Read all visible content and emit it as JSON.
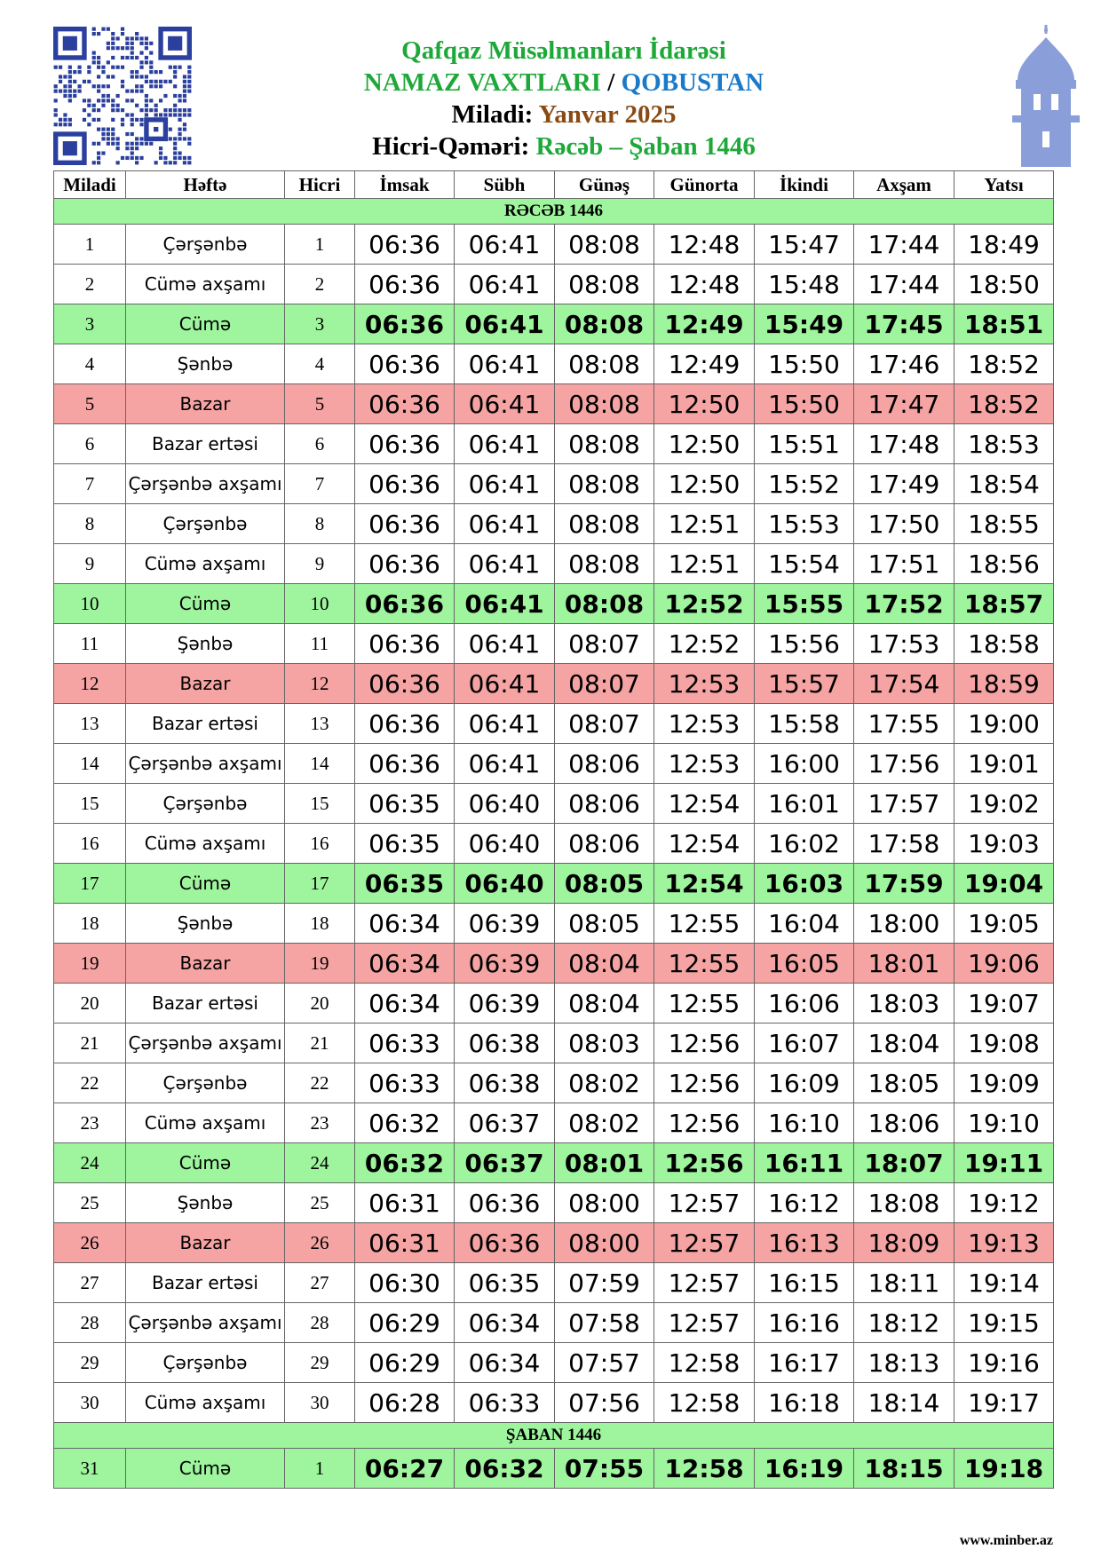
{
  "header": {
    "org": "Qafqaz Müsəlmanları İdarəsi",
    "title": "NAMAZ VAXTLARI",
    "separator": "/",
    "city": "QOBUSTAN",
    "miladi_label": "Miladi:",
    "miladi": "Yanvar 2025",
    "hijri_label": "Hicri-Qəməri:",
    "hijri": "Rəcəb – Şaban 1446"
  },
  "table": {
    "columns": [
      "Miladi",
      "Həftə",
      "Hicri",
      "İmsak",
      "Sübh",
      "Günəş",
      "Günorta",
      "İkindi",
      "Axşam",
      "Yatsı"
    ],
    "sections": [
      {
        "title": "RƏCƏB 1446",
        "rows": [
          {
            "cells": [
              1,
              "Çərşənbə",
              1,
              "06:36",
              "06:41",
              "08:08",
              "12:48",
              "15:47",
              "17:44",
              "18:49"
            ]
          },
          {
            "cells": [
              2,
              "Cümə axşamı",
              2,
              "06:36",
              "06:41",
              "08:08",
              "12:48",
              "15:48",
              "17:44",
              "18:50"
            ]
          },
          {
            "cells": [
              3,
              "Cümə",
              3,
              "06:36",
              "06:41",
              "08:08",
              "12:49",
              "15:49",
              "17:45",
              "18:51"
            ],
            "color": "#9ef59e",
            "bold": true
          },
          {
            "cells": [
              4,
              "Şənbə",
              4,
              "06:36",
              "06:41",
              "08:08",
              "12:49",
              "15:50",
              "17:46",
              "18:52"
            ]
          },
          {
            "cells": [
              5,
              "Bazar",
              5,
              "06:36",
              "06:41",
              "08:08",
              "12:50",
              "15:50",
              "17:47",
              "18:52"
            ],
            "color": "#f5a3a3"
          },
          {
            "cells": [
              6,
              "Bazar ertəsi",
              6,
              "06:36",
              "06:41",
              "08:08",
              "12:50",
              "15:51",
              "17:48",
              "18:53"
            ]
          },
          {
            "cells": [
              7,
              "Çərşənbə axşamı",
              7,
              "06:36",
              "06:41",
              "08:08",
              "12:50",
              "15:52",
              "17:49",
              "18:54"
            ]
          },
          {
            "cells": [
              8,
              "Çərşənbə",
              8,
              "06:36",
              "06:41",
              "08:08",
              "12:51",
              "15:53",
              "17:50",
              "18:55"
            ]
          },
          {
            "cells": [
              9,
              "Cümə axşamı",
              9,
              "06:36",
              "06:41",
              "08:08",
              "12:51",
              "15:54",
              "17:51",
              "18:56"
            ]
          },
          {
            "cells": [
              10,
              "Cümə",
              10,
              "06:36",
              "06:41",
              "08:08",
              "12:52",
              "15:55",
              "17:52",
              "18:57"
            ],
            "color": "#9ef59e",
            "bold": true
          },
          {
            "cells": [
              11,
              "Şənbə",
              11,
              "06:36",
              "06:41",
              "08:07",
              "12:52",
              "15:56",
              "17:53",
              "18:58"
            ]
          },
          {
            "cells": [
              12,
              "Bazar",
              12,
              "06:36",
              "06:41",
              "08:07",
              "12:53",
              "15:57",
              "17:54",
              "18:59"
            ],
            "color": "#f5a3a3"
          },
          {
            "cells": [
              13,
              "Bazar ertəsi",
              13,
              "06:36",
              "06:41",
              "08:07",
              "12:53",
              "15:58",
              "17:55",
              "19:00"
            ]
          },
          {
            "cells": [
              14,
              "Çərşənbə axşamı",
              14,
              "06:36",
              "06:41",
              "08:06",
              "12:53",
              "16:00",
              "17:56",
              "19:01"
            ]
          },
          {
            "cells": [
              15,
              "Çərşənbə",
              15,
              "06:35",
              "06:40",
              "08:06",
              "12:54",
              "16:01",
              "17:57",
              "19:02"
            ]
          },
          {
            "cells": [
              16,
              "Cümə axşamı",
              16,
              "06:35",
              "06:40",
              "08:06",
              "12:54",
              "16:02",
              "17:58",
              "19:03"
            ]
          },
          {
            "cells": [
              17,
              "Cümə",
              17,
              "06:35",
              "06:40",
              "08:05",
              "12:54",
              "16:03",
              "17:59",
              "19:04"
            ],
            "color": "#9ef59e",
            "bold": true
          },
          {
            "cells": [
              18,
              "Şənbə",
              18,
              "06:34",
              "06:39",
              "08:05",
              "12:55",
              "16:04",
              "18:00",
              "19:05"
            ]
          },
          {
            "cells": [
              19,
              "Bazar",
              19,
              "06:34",
              "06:39",
              "08:04",
              "12:55",
              "16:05",
              "18:01",
              "19:06"
            ],
            "color": "#f5a3a3"
          },
          {
            "cells": [
              20,
              "Bazar ertəsi",
              20,
              "06:34",
              "06:39",
              "08:04",
              "12:55",
              "16:06",
              "18:03",
              "19:07"
            ]
          },
          {
            "cells": [
              21,
              "Çərşənbə axşamı",
              21,
              "06:33",
              "06:38",
              "08:03",
              "12:56",
              "16:07",
              "18:04",
              "19:08"
            ]
          },
          {
            "cells": [
              22,
              "Çərşənbə",
              22,
              "06:33",
              "06:38",
              "08:02",
              "12:56",
              "16:09",
              "18:05",
              "19:09"
            ]
          },
          {
            "cells": [
              23,
              "Cümə axşamı",
              23,
              "06:32",
              "06:37",
              "08:02",
              "12:56",
              "16:10",
              "18:06",
              "19:10"
            ]
          },
          {
            "cells": [
              24,
              "Cümə",
              24,
              "06:32",
              "06:37",
              "08:01",
              "12:56",
              "16:11",
              "18:07",
              "19:11"
            ],
            "color": "#9ef59e",
            "bold": true
          },
          {
            "cells": [
              25,
              "Şənbə",
              25,
              "06:31",
              "06:36",
              "08:00",
              "12:57",
              "16:12",
              "18:08",
              "19:12"
            ]
          },
          {
            "cells": [
              26,
              "Bazar",
              26,
              "06:31",
              "06:36",
              "08:00",
              "12:57",
              "16:13",
              "18:09",
              "19:13"
            ],
            "color": "#f5a3a3"
          },
          {
            "cells": [
              27,
              "Bazar ertəsi",
              27,
              "06:30",
              "06:35",
              "07:59",
              "12:57",
              "16:15",
              "18:11",
              "19:14"
            ]
          },
          {
            "cells": [
              28,
              "Çərşənbə axşamı",
              28,
              "06:29",
              "06:34",
              "07:58",
              "12:57",
              "16:16",
              "18:12",
              "19:15"
            ]
          },
          {
            "cells": [
              29,
              "Çərşənbə",
              29,
              "06:29",
              "06:34",
              "07:57",
              "12:58",
              "16:17",
              "18:13",
              "19:16"
            ]
          },
          {
            "cells": [
              30,
              "Cümə axşamı",
              30,
              "06:28",
              "06:33",
              "07:56",
              "12:58",
              "16:18",
              "18:14",
              "19:17"
            ]
          }
        ]
      },
      {
        "title": "ŞABAN 1446",
        "rows": [
          {
            "cells": [
              31,
              "Cümə",
              1,
              "06:27",
              "06:32",
              "07:55",
              "12:58",
              "16:19",
              "18:15",
              "19:18"
            ],
            "color": "#9ef59e",
            "bold": true
          }
        ]
      }
    ]
  },
  "footer": {
    "site": "www.minber.az"
  }
}
